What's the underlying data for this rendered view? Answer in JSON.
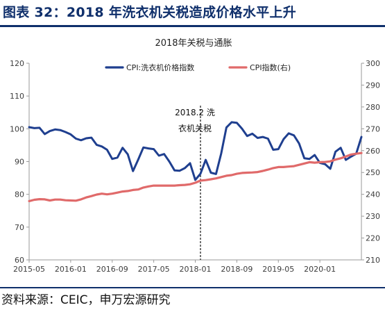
{
  "figure": {
    "title": "图表 32：2018 年洗衣机关税造成价格水平上升",
    "source": "资料来源：CEIC，申万宏源研究"
  },
  "colors": {
    "header": "#0f2f6b",
    "series_left": "#1f3f8f",
    "series_right": "#e06a6a",
    "axis_left": "#3c3c3c",
    "axis_right": "#2f6fb5"
  },
  "chart_data": {
    "type": "line",
    "title": "2018年关税与通胀",
    "x_ticks": [
      "2015-05",
      "2016-01",
      "2016-09",
      "2017-05",
      "2018-01",
      "2018-09",
      "2019-05",
      "2020-01"
    ],
    "x_range": [
      "2015-05",
      "2020-09"
    ],
    "y_left": {
      "range": [
        60,
        120
      ],
      "ticks": [
        "60",
        "70",
        "80",
        "90",
        "100",
        "110",
        "120"
      ]
    },
    "y_right": {
      "range": [
        210,
        300
      ],
      "ticks": [
        "210",
        "220",
        "230",
        "240",
        "250",
        "260",
        "270",
        "280",
        "290",
        "300"
      ]
    },
    "legend_position": "top",
    "grid": false,
    "annotation": {
      "x": "2018-02",
      "lines": [
        "2018.2 洗",
        "衣机关税"
      ]
    },
    "series": [
      {
        "name": "CPI:洗衣机价格指数",
        "axis": "left",
        "points": [
          [
            "2015-05",
            100.5
          ],
          [
            "2015-06",
            100.2
          ],
          [
            "2015-07",
            100.3
          ],
          [
            "2015-08",
            98.4
          ],
          [
            "2015-09",
            99.3
          ],
          [
            "2015-10",
            99.8
          ],
          [
            "2015-11",
            99.6
          ],
          [
            "2015-12",
            99.0
          ],
          [
            "2016-01",
            98.3
          ],
          [
            "2016-02",
            97.0
          ],
          [
            "2016-03",
            96.5
          ],
          [
            "2016-04",
            97.1
          ],
          [
            "2016-05",
            97.3
          ],
          [
            "2016-06",
            95.1
          ],
          [
            "2016-07",
            94.6
          ],
          [
            "2016-08",
            93.6
          ],
          [
            "2016-09",
            90.8
          ],
          [
            "2016-10",
            91.2
          ],
          [
            "2016-11",
            94.2
          ],
          [
            "2016-12",
            92.2
          ],
          [
            "2017-01",
            87.1
          ],
          [
            "2017-02",
            90.6
          ],
          [
            "2017-03",
            94.3
          ],
          [
            "2017-04",
            94.0
          ],
          [
            "2017-05",
            93.8
          ],
          [
            "2017-06",
            91.8
          ],
          [
            "2017-07",
            92.3
          ],
          [
            "2017-08",
            90.0
          ],
          [
            "2017-09",
            87.3
          ],
          [
            "2017-10",
            87.2
          ],
          [
            "2017-11",
            88.0
          ],
          [
            "2017-12",
            89.5
          ],
          [
            "2018-01",
            84.4
          ],
          [
            "2018-02",
            86.3
          ],
          [
            "2018-03",
            90.5
          ],
          [
            "2018-04",
            86.6
          ],
          [
            "2018-05",
            86.2
          ],
          [
            "2018-06",
            92.5
          ],
          [
            "2018-07",
            100.4
          ],
          [
            "2018-08",
            102.0
          ],
          [
            "2018-09",
            101.8
          ],
          [
            "2018-10",
            100.0
          ],
          [
            "2018-11",
            97.8
          ],
          [
            "2018-12",
            98.5
          ],
          [
            "2019-01",
            97.2
          ],
          [
            "2019-02",
            97.5
          ],
          [
            "2019-03",
            97.0
          ],
          [
            "2019-04",
            93.6
          ],
          [
            "2019-05",
            93.8
          ],
          [
            "2019-06",
            96.8
          ],
          [
            "2019-07",
            98.6
          ],
          [
            "2019-08",
            98.0
          ],
          [
            "2019-09",
            95.5
          ],
          [
            "2019-10",
            91.0
          ],
          [
            "2019-11",
            90.8
          ],
          [
            "2019-12",
            92.0
          ],
          [
            "2020-01",
            89.6
          ],
          [
            "2020-02",
            89.2
          ],
          [
            "2020-03",
            87.8
          ],
          [
            "2020-04",
            93.0
          ],
          [
            "2020-05",
            94.2
          ],
          [
            "2020-06",
            90.5
          ],
          [
            "2020-07",
            91.5
          ],
          [
            "2020-08",
            92.4
          ],
          [
            "2020-09",
            97.5
          ]
        ]
      },
      {
        "name": "CPI指数(右)",
        "axis": "right",
        "points": [
          [
            "2015-05",
            236.9
          ],
          [
            "2015-06",
            237.5
          ],
          [
            "2015-07",
            237.8
          ],
          [
            "2015-08",
            237.7
          ],
          [
            "2015-09",
            237.2
          ],
          [
            "2015-10",
            237.6
          ],
          [
            "2015-11",
            237.6
          ],
          [
            "2015-12",
            237.3
          ],
          [
            "2016-01",
            237.2
          ],
          [
            "2016-02",
            237.1
          ],
          [
            "2016-03",
            237.7
          ],
          [
            "2016-04",
            238.6
          ],
          [
            "2016-05",
            239.2
          ],
          [
            "2016-06",
            239.9
          ],
          [
            "2016-07",
            240.3
          ],
          [
            "2016-08",
            240.0
          ],
          [
            "2016-09",
            240.3
          ],
          [
            "2016-10",
            240.8
          ],
          [
            "2016-11",
            241.3
          ],
          [
            "2016-12",
            241.5
          ],
          [
            "2017-01",
            242.0
          ],
          [
            "2017-02",
            242.2
          ],
          [
            "2017-03",
            243.1
          ],
          [
            "2017-04",
            243.6
          ],
          [
            "2017-05",
            244.0
          ],
          [
            "2017-06",
            244.0
          ],
          [
            "2017-07",
            244.0
          ],
          [
            "2017-08",
            244.0
          ],
          [
            "2017-09",
            244.0
          ],
          [
            "2017-10",
            244.2
          ],
          [
            "2017-11",
            244.3
          ],
          [
            "2017-12",
            244.6
          ],
          [
            "2018-01",
            245.3
          ],
          [
            "2018-02",
            246.3
          ],
          [
            "2018-03",
            246.5
          ],
          [
            "2018-04",
            246.9
          ],
          [
            "2018-05",
            247.3
          ],
          [
            "2018-06",
            247.9
          ],
          [
            "2018-07",
            248.5
          ],
          [
            "2018-08",
            248.8
          ],
          [
            "2018-09",
            249.4
          ],
          [
            "2018-10",
            249.8
          ],
          [
            "2018-11",
            249.9
          ],
          [
            "2018-12",
            250.0
          ],
          [
            "2019-01",
            250.2
          ],
          [
            "2019-02",
            250.7
          ],
          [
            "2019-03",
            251.3
          ],
          [
            "2019-04",
            252.0
          ],
          [
            "2019-05",
            252.5
          ],
          [
            "2019-06",
            252.5
          ],
          [
            "2019-07",
            252.7
          ],
          [
            "2019-08",
            252.9
          ],
          [
            "2019-09",
            253.5
          ],
          [
            "2019-10",
            254.1
          ],
          [
            "2019-11",
            254.7
          ],
          [
            "2019-12",
            254.5
          ],
          [
            "2020-01",
            254.7
          ],
          [
            "2020-02",
            254.8
          ],
          [
            "2020-03",
            255.1
          ],
          [
            "2020-04",
            255.9
          ],
          [
            "2020-05",
            256.5
          ],
          [
            "2020-06",
            257.3
          ],
          [
            "2020-07",
            258.2
          ],
          [
            "2020-08",
            258.6
          ],
          [
            "2020-09",
            258.9
          ]
        ]
      }
    ]
  }
}
